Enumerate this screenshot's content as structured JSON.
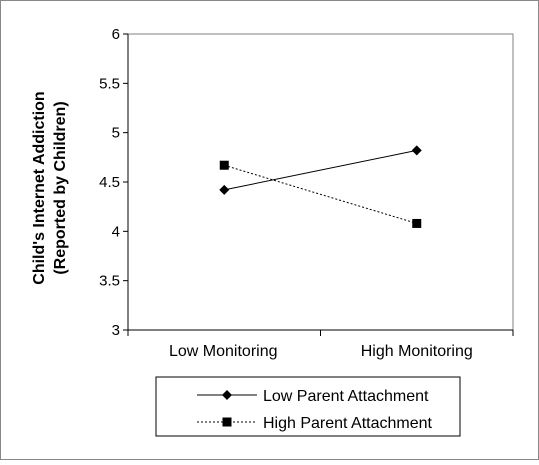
{
  "chart_data": {
    "type": "line",
    "title": "",
    "ylabel_lines": [
      "Child's Internet Addiction",
      "(Reported by Children)"
    ],
    "xlabel": "",
    "categories": [
      "Low Monitoring",
      "High Monitoring"
    ],
    "ylim": [
      3,
      6
    ],
    "yticks": [
      3,
      3.5,
      4,
      4.5,
      5,
      5.5,
      6
    ],
    "grid": false,
    "legend_position": "bottom",
    "series": [
      {
        "name": "Low Parent Attachment",
        "values": [
          4.42,
          4.82
        ],
        "marker": "diamond",
        "line_style": "solid",
        "color": "#000000"
      },
      {
        "name": "High Parent Attachment",
        "values": [
          4.67,
          4.08
        ],
        "marker": "square",
        "line_style": "dashed",
        "color": "#000000"
      }
    ]
  }
}
